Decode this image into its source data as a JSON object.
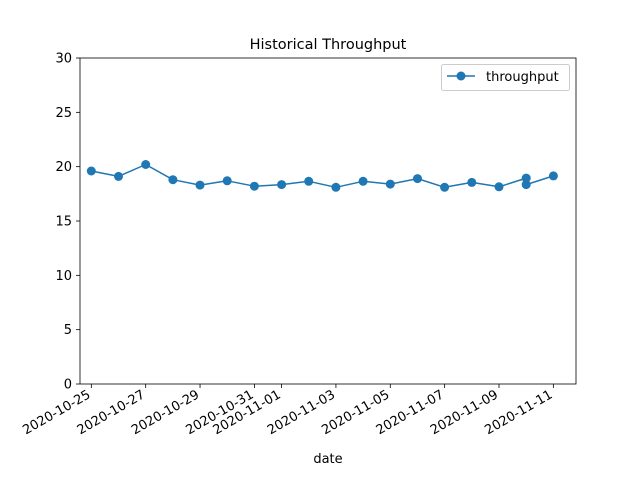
{
  "chart_data": {
    "type": "line",
    "title": "Historical Throughput",
    "xlabel": "date",
    "ylabel": "",
    "ylim": [
      0,
      30
    ],
    "yticks": [
      0,
      5,
      10,
      15,
      20,
      25,
      30
    ],
    "xlim": [
      "2020-10-24T14:00",
      "2020-11-11T20:00"
    ],
    "xticks": [
      "2020-10-25",
      "2020-10-27",
      "2020-10-29",
      "2020-10-31",
      "2020-11-01",
      "2020-11-03",
      "2020-11-05",
      "2020-11-07",
      "2020-11-09",
      "2020-11-11"
    ],
    "legend_position": "top-right",
    "grid": false,
    "series": [
      {
        "name": "throughput",
        "color": "#1f77b4",
        "marker": "circle",
        "points": [
          {
            "x": "2020-10-25",
            "y": 19.6
          },
          {
            "x": "2020-10-26",
            "y": 19.1
          },
          {
            "x": "2020-10-27",
            "y": 20.2
          },
          {
            "x": "2020-10-28",
            "y": 18.8
          },
          {
            "x": "2020-10-29",
            "y": 18.3
          },
          {
            "x": "2020-10-30",
            "y": 18.7
          },
          {
            "x": "2020-10-31",
            "y": 18.2
          },
          {
            "x": "2020-11-01",
            "y": 18.35
          },
          {
            "x": "2020-11-02",
            "y": 18.65
          },
          {
            "x": "2020-11-03",
            "y": 18.1
          },
          {
            "x": "2020-11-04",
            "y": 18.65
          },
          {
            "x": "2020-11-05",
            "y": 18.4
          },
          {
            "x": "2020-11-06",
            "y": 18.9
          },
          {
            "x": "2020-11-07",
            "y": 18.1
          },
          {
            "x": "2020-11-08",
            "y": 18.55
          },
          {
            "x": "2020-11-09",
            "y": 18.15
          },
          {
            "x": "2020-11-10",
            "y": 18.95
          },
          {
            "x": "2020-11-10",
            "y": 18.35
          },
          {
            "x": "2020-11-11",
            "y": 19.15
          }
        ]
      }
    ]
  }
}
